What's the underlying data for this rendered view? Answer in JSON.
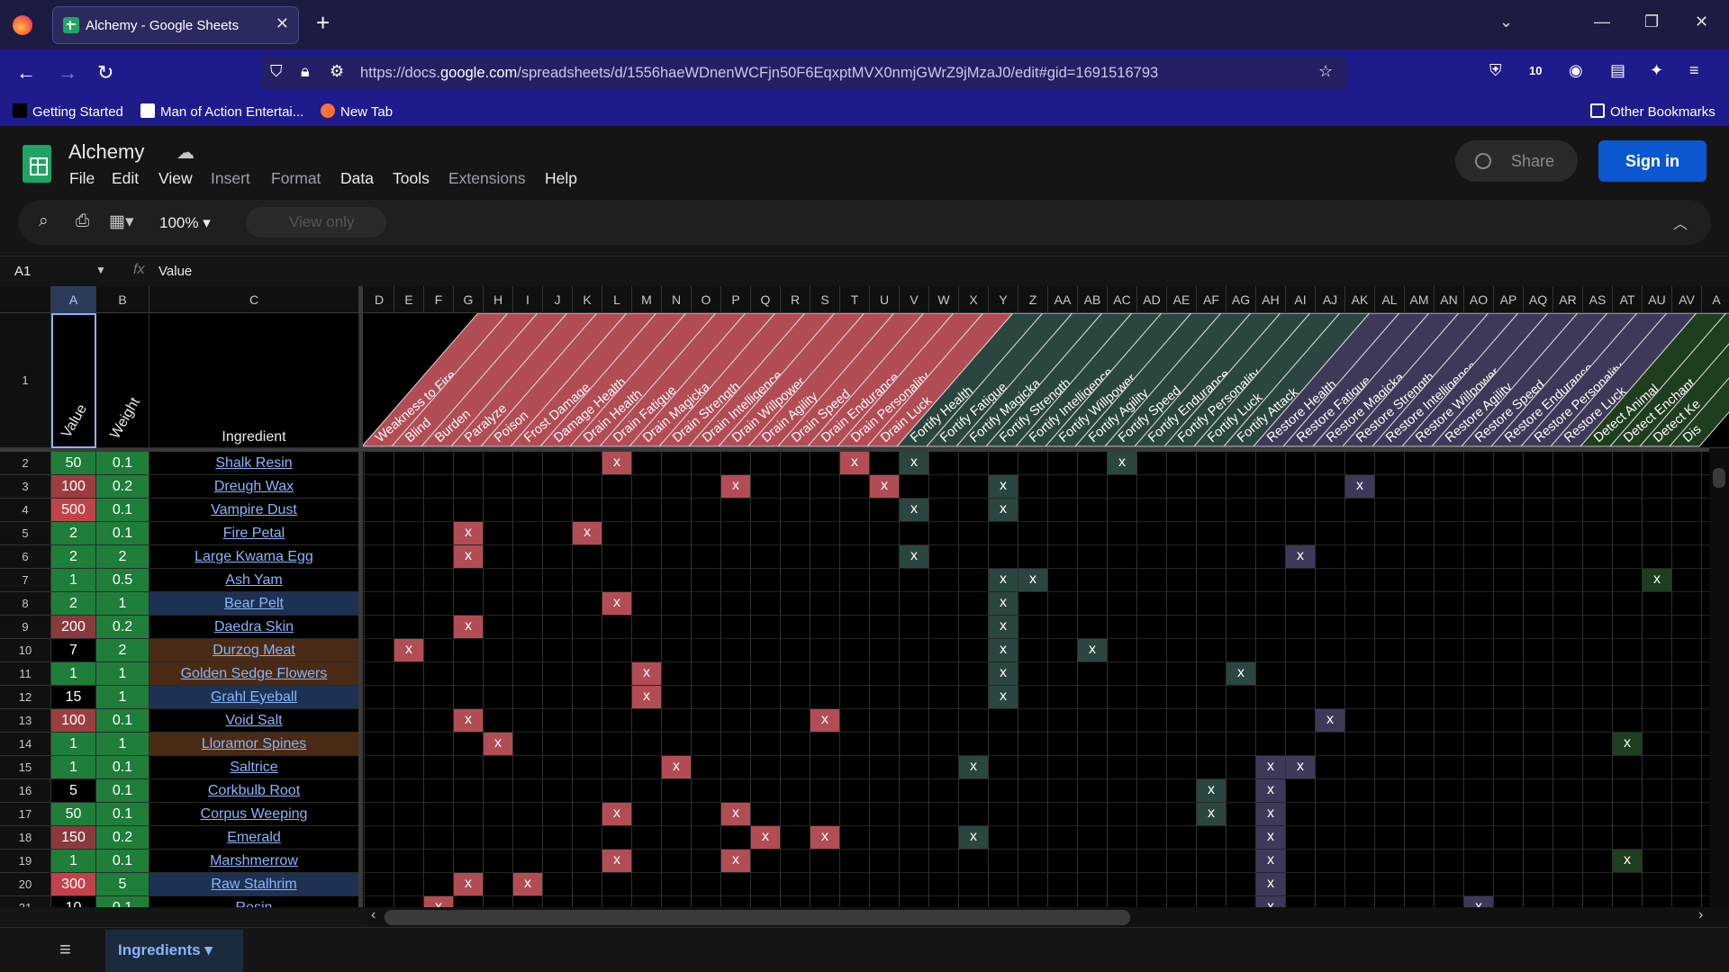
{
  "browser": {
    "tab_title": "Alchemy - Google Sheets",
    "url_prefix": "https://docs.",
    "url_domain": "google.com",
    "url_rest": "/spreadsheets/d/1556haeWDnenWCFjn50F6EqxptMVX0nmjGWrZ9jMzaJ0/edit#gid=1691516793",
    "bookmarks": [
      "Getting Started",
      "Man of Action Entertai...",
      "New Tab"
    ],
    "other_bookmarks": "Other Bookmarks"
  },
  "doc": {
    "title": "Alchemy",
    "menus": [
      "File",
      "Edit",
      "View",
      "Insert",
      "Format",
      "Data",
      "Tools",
      "Extensions",
      "Help"
    ],
    "share_label": "Share",
    "signin_label": "Sign in",
    "zoom": "100%",
    "view_only": "View only",
    "name_box": "A1",
    "formula": "Value",
    "sheet_tab": "Ingredients"
  },
  "columns": [
    "A",
    "B",
    "C",
    "D",
    "E",
    "F",
    "G",
    "H",
    "I",
    "J",
    "K",
    "L",
    "M",
    "N",
    "O",
    "P",
    "Q",
    "R",
    "S",
    "T",
    "U",
    "V",
    "W",
    "X",
    "Y",
    "Z",
    "AA",
    "AB",
    "AC",
    "AD",
    "AE",
    "AF",
    "AG",
    "AH",
    "AI",
    "AJ",
    "AK",
    "AL",
    "AM",
    "AN",
    "AO",
    "AP",
    "AQ",
    "AR",
    "AS",
    "AT",
    "AU",
    "AV",
    "A"
  ],
  "header_row": {
    "value": "Value",
    "weight": "Weight",
    "ingredient": "Ingredient"
  },
  "effects": [
    "Weakness to Fire",
    "Blind",
    "Burden",
    "Paralyze",
    "Poison",
    "Frost Damage",
    "Damage Health",
    "Drain Health",
    "Drain Fatigue",
    "Drain Magicka",
    "Drain Strength",
    "Drain Intelligence",
    "Drain Willpower",
    "Drain Agility",
    "Drain Speed",
    "Drain Endurance",
    "Drain Personality",
    "Drain Luck",
    "Fortify Health",
    "Fortify Fatigue",
    "Fortify Magicka",
    "Fortify Strength",
    "Fortify Intelligence",
    "Fortify Willpower",
    "Fortify Agility",
    "Fortify Speed",
    "Fortify Endurance",
    "Fortify Personality",
    "Fortify Luck",
    "Fortify Attack",
    "Restore Health",
    "Restore Fatigue",
    "Restore Magicka",
    "Restore Strength",
    "Restore Intelligence",
    "Restore Willpower",
    "Restore Agility",
    "Restore Speed",
    "Restore Endurance",
    "Restore Personality",
    "Restore Luck",
    "Detect Animal",
    "Detect Enchant",
    "Detect Ke",
    "Dis"
  ],
  "rows": [
    {
      "n": "2",
      "value": "50",
      "weight": "0.1",
      "name": "Shalk Resin",
      "vc": "#1e7e3a",
      "nc": "#000",
      "marks": [
        8,
        16,
        18,
        25
      ]
    },
    {
      "n": "3",
      "value": "100",
      "weight": "0.2",
      "name": "Dreugh Wax",
      "vc": "#9c3e41",
      "nc": "#000",
      "marks": [
        12,
        17,
        21,
        33
      ]
    },
    {
      "n": "4",
      "value": "500",
      "weight": "0.1",
      "name": "Vampire Dust",
      "vc": "#c2424a",
      "nc": "#000",
      "marks": [
        18,
        21
      ]
    },
    {
      "n": "5",
      "value": "2",
      "weight": "0.1",
      "name": "Fire Petal",
      "vc": "#1e7e3a",
      "nc": "#000",
      "marks": [
        3,
        7
      ]
    },
    {
      "n": "6",
      "value": "2",
      "weight": "2",
      "name": "Large Kwama Egg",
      "vc": "#1e7e3a",
      "nc": "#000",
      "marks": [
        3,
        18,
        31
      ]
    },
    {
      "n": "7",
      "value": "1",
      "weight": "0.5",
      "name": "Ash Yam",
      "vc": "#1e7e3a",
      "nc": "#000",
      "marks": [
        21,
        22,
        43
      ]
    },
    {
      "n": "8",
      "value": "2",
      "weight": "1",
      "name": "Bear Pelt",
      "vc": "#1e7e3a",
      "nc": "#1d3153",
      "marks": [
        8,
        21
      ]
    },
    {
      "n": "9",
      "value": "200",
      "weight": "0.2",
      "name": "Daedra Skin",
      "vc": "#8a3a3c",
      "nc": "#000",
      "marks": [
        3,
        21
      ]
    },
    {
      "n": "10",
      "value": "7",
      "weight": "2",
      "name": "Durzog Meat",
      "vc": "#000",
      "nc": "#4a2a14",
      "marks": [
        1,
        21,
        24
      ]
    },
    {
      "n": "11",
      "value": "1",
      "weight": "1",
      "name": "Golden Sedge Flowers",
      "vc": "#1e7e3a",
      "nc": "#4a2a14",
      "marks": [
        9,
        21,
        29
      ]
    },
    {
      "n": "12",
      "value": "15",
      "weight": "1",
      "name": "Grahl Eyeball",
      "vc": "#000",
      "nc": "#1d3153",
      "marks": [
        9,
        21
      ]
    },
    {
      "n": "13",
      "value": "100",
      "weight": "0.1",
      "name": "Void Salt",
      "vc": "#9c3e41",
      "nc": "#000",
      "marks": [
        3,
        15,
        32
      ]
    },
    {
      "n": "14",
      "value": "1",
      "weight": "1",
      "name": "Lloramor Spines",
      "vc": "#1e7e3a",
      "nc": "#4a2a14",
      "marks": [
        4,
        42
      ]
    },
    {
      "n": "15",
      "value": "1",
      "weight": "0.1",
      "name": "Saltrice",
      "vc": "#1e7e3a",
      "nc": "#000",
      "marks": [
        10,
        20,
        30,
        31
      ]
    },
    {
      "n": "16",
      "value": "5",
      "weight": "0.1",
      "name": "Corkbulb Root",
      "vc": "#000",
      "nc": "#000",
      "marks": [
        28,
        30
      ]
    },
    {
      "n": "17",
      "value": "50",
      "weight": "0.1",
      "name": "Corpus Weeping",
      "vc": "#1e7e3a",
      "nc": "#000",
      "marks": [
        8,
        12,
        28,
        30
      ]
    },
    {
      "n": "18",
      "value": "150",
      "weight": "0.2",
      "name": "Emerald",
      "vc": "#8a3a3c",
      "nc": "#000",
      "marks": [
        13,
        15,
        20,
        30
      ]
    },
    {
      "n": "19",
      "value": "1",
      "weight": "0.1",
      "name": "Marshmerrow",
      "vc": "#1e7e3a",
      "nc": "#000",
      "marks": [
        8,
        12,
        30,
        42
      ]
    },
    {
      "n": "20",
      "value": "300",
      "weight": "5",
      "name": "Raw Stalhrim",
      "vc": "#c2424a",
      "nc": "#1d3153",
      "marks": [
        3,
        5,
        30
      ]
    },
    {
      "n": "21",
      "value": "10",
      "weight": "0.1",
      "name": "Resin",
      "vc": "#000",
      "nc": "#000",
      "marks": [
        2,
        30,
        37
      ]
    }
  ],
  "colors": {
    "red": "#b24c55",
    "teal": "#2b4540",
    "purple": "#3e3958",
    "green": "#1f3d1f"
  }
}
